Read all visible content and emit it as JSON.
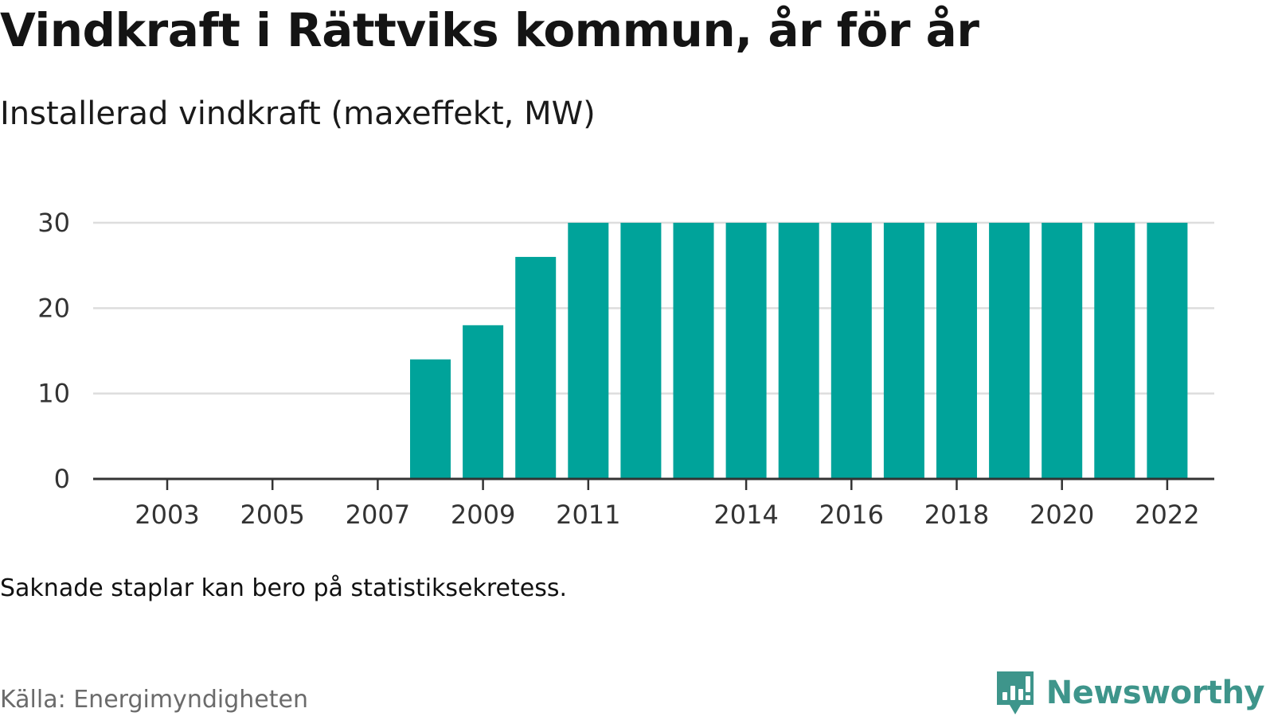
{
  "header": {
    "title": "Vindkraft i Rättviks kommun, år för år",
    "subtitle": "Installerad vindkraft (maxeffekt, MW)"
  },
  "footer": {
    "note": "Saknade staplar kan bero på statistiksekretess.",
    "source": "Källa: Energimyndigheten",
    "brand": "Newsworthy",
    "brand_icon": "bar-chart-speech-bubble-icon"
  },
  "colors": {
    "bar": "#00a39a",
    "grid": "#dddddd",
    "axis": "#333333",
    "brand": "#3e958b"
  },
  "chart_data": {
    "type": "bar",
    "title": "Vindkraft i Rättviks kommun, år för år",
    "subtitle": "Installerad vindkraft (maxeffekt, MW)",
    "xlabel": "",
    "ylabel": "",
    "categories": [
      2003,
      2004,
      2005,
      2006,
      2007,
      2008,
      2009,
      2010,
      2011,
      2012,
      2013,
      2014,
      2015,
      2016,
      2017,
      2018,
      2019,
      2020,
      2021,
      2022
    ],
    "values": [
      null,
      null,
      null,
      null,
      null,
      14,
      18,
      26,
      30,
      30,
      30,
      30,
      30,
      30,
      30,
      30,
      30,
      30,
      30,
      30
    ],
    "x_tick_labels": [
      "2003",
      "2005",
      "2007",
      "2009",
      "2011",
      "2014",
      "2016",
      "2018",
      "2020",
      "2022"
    ],
    "y_tick_labels": [
      "0",
      "10",
      "20",
      "30"
    ],
    "ylim": [
      0,
      30
    ],
    "grid": true,
    "legend": "none"
  }
}
